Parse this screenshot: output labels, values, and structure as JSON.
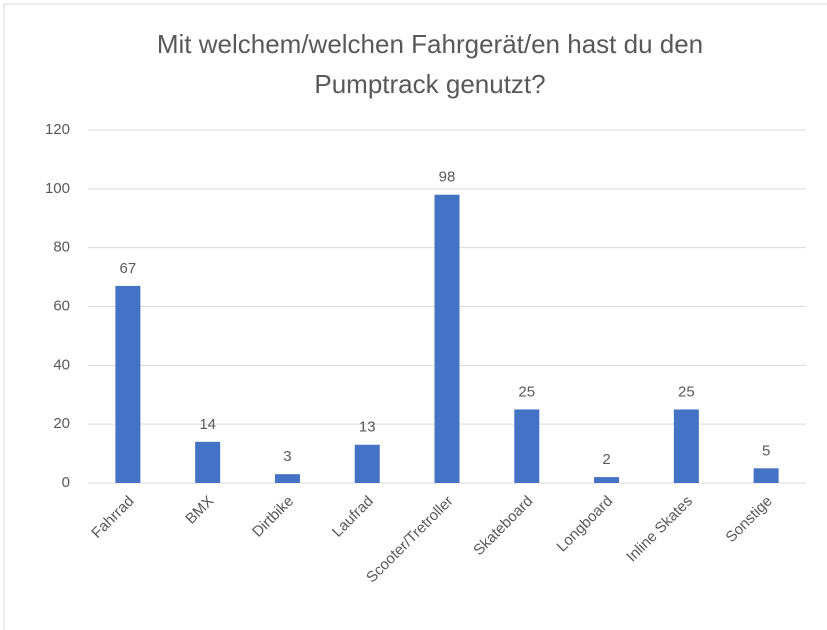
{
  "chart_data": {
    "type": "bar",
    "title": [
      "Mit welchem/welchen Fahrgerät/en hast du den",
      "Pumptrack genutzt?"
    ],
    "categories": [
      "Fahrrad",
      "BMX",
      "Dirtbike",
      "Laufrad",
      "Scooter/Tretroller",
      "Skateboard",
      "Longboard",
      "Inline Skates",
      "Sonstige"
    ],
    "values": [
      67,
      14,
      3,
      13,
      98,
      25,
      2,
      25,
      5
    ],
    "color": "#4472c4",
    "ylim": [
      0,
      120
    ],
    "yticks": [
      0,
      20,
      40,
      60,
      80,
      100,
      120
    ],
    "grid": true,
    "data_labels": true
  }
}
